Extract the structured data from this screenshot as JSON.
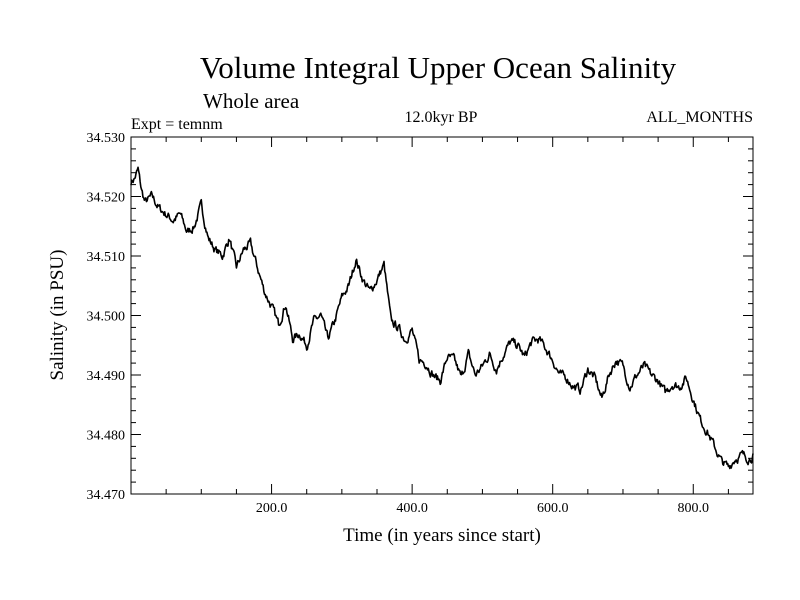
{
  "chart_data": {
    "type": "line",
    "title": "Volume Integral Upper Ocean Salinity",
    "subtitle": "Whole area",
    "experiment": "Expt = temnm",
    "period": "12.0kyr BP",
    "months": "ALL_MONTHS",
    "xlabel": "Time (in years since start)",
    "ylabel": "Salinity (in PSU)",
    "xlim": [
      0,
      885
    ],
    "ylim": [
      34.47,
      34.53
    ],
    "x_ticks": [
      200,
      400,
      600,
      800
    ],
    "x_tick_labels": [
      "200.0",
      "400.0",
      "600.0",
      "800.0"
    ],
    "y_ticks": [
      34.47,
      34.48,
      34.49,
      34.5,
      34.51,
      34.52,
      34.53
    ],
    "y_tick_labels": [
      "34.470",
      "34.480",
      "34.490",
      "34.500",
      "34.510",
      "34.520",
      "34.530"
    ],
    "grid": false,
    "series": [
      {
        "name": "Salinity",
        "color": "#000000",
        "x": [
          0,
          5,
          10,
          15,
          20,
          30,
          40,
          50,
          60,
          70,
          80,
          90,
          100,
          110,
          120,
          130,
          140,
          150,
          160,
          170,
          180,
          190,
          200,
          210,
          220,
          230,
          240,
          250,
          260,
          270,
          280,
          290,
          300,
          310,
          320,
          330,
          340,
          350,
          360,
          370,
          380,
          390,
          400,
          410,
          420,
          430,
          440,
          450,
          460,
          470,
          480,
          490,
          500,
          510,
          520,
          530,
          540,
          550,
          560,
          570,
          580,
          590,
          600,
          610,
          620,
          630,
          640,
          650,
          660,
          670,
          680,
          690,
          700,
          710,
          720,
          730,
          740,
          750,
          760,
          770,
          780,
          790,
          800,
          810,
          820,
          830,
          840,
          850,
          860,
          870,
          880,
          885
        ],
        "values": [
          34.5225,
          34.523,
          34.5245,
          34.521,
          34.519,
          34.52,
          34.518,
          34.517,
          34.516,
          34.517,
          34.514,
          34.515,
          34.5185,
          34.513,
          34.511,
          34.51,
          34.513,
          34.508,
          34.511,
          34.512,
          34.508,
          34.504,
          34.5015,
          34.4985,
          34.502,
          34.496,
          34.497,
          34.495,
          34.499,
          34.5,
          34.496,
          34.499,
          34.503,
          34.505,
          34.5095,
          34.506,
          34.504,
          34.506,
          34.5085,
          34.499,
          34.498,
          34.496,
          34.4975,
          34.4925,
          34.492,
          34.49,
          34.489,
          34.493,
          34.4925,
          34.4895,
          34.4935,
          34.49,
          34.4915,
          34.4935,
          34.491,
          34.4935,
          34.4955,
          34.495,
          34.493,
          34.4955,
          34.496,
          34.4945,
          34.4925,
          34.49,
          34.4895,
          34.488,
          34.4875,
          34.491,
          34.4895,
          34.486,
          34.49,
          34.4925,
          34.4915,
          34.488,
          34.49,
          34.4915,
          34.49,
          34.489,
          34.487,
          34.4885,
          34.488,
          34.4895,
          34.486,
          34.4825,
          34.4805,
          34.478,
          34.4755,
          34.4745,
          34.476,
          34.4765,
          34.476,
          34.4765
        ]
      }
    ]
  }
}
